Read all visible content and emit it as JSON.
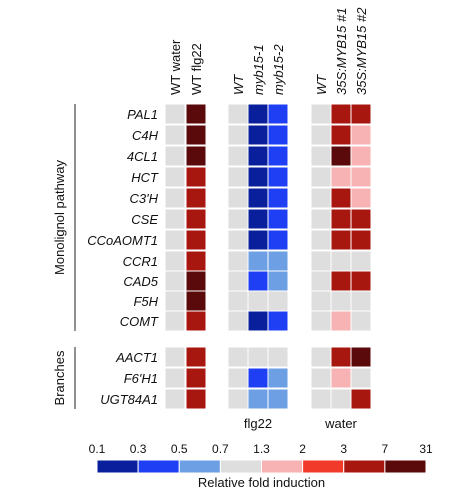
{
  "chart_data": {
    "type": "heatmap",
    "title": "",
    "row_groups": [
      {
        "name": "Monolignol pathway",
        "rows": [
          "PAL1",
          "C4H",
          "4CL1",
          "HCT",
          "C3'H",
          "CSE",
          "CCoAOMT1",
          "CCR1",
          "CAD5",
          "F5H",
          "COMT"
        ]
      },
      {
        "name": "Branches",
        "rows": [
          "AACT1",
          "F6'H1",
          "UGT84A1"
        ]
      }
    ],
    "panels": [
      {
        "label": "",
        "columns": [
          "WT water",
          "WT flg22"
        ],
        "italic": [
          false,
          false
        ]
      },
      {
        "label": "flg22",
        "columns": [
          "WT",
          "myb15-1",
          "myb15-2"
        ],
        "italic": [
          true,
          true,
          true
        ]
      },
      {
        "label": "water",
        "columns": [
          "WT",
          "35S:MYB15 #1",
          "35S:MYB15 #2"
        ],
        "italic": [
          true,
          true,
          true
        ]
      }
    ],
    "values": [
      [
        [
          1,
          15
        ],
        [
          1,
          0.2,
          0.3
        ],
        [
          1,
          5,
          4
        ]
      ],
      [
        [
          1,
          25
        ],
        [
          1,
          0.2,
          0.3
        ],
        [
          1,
          3,
          1.8
        ]
      ],
      [
        [
          1,
          28
        ],
        [
          1,
          0.2,
          0.3
        ],
        [
          1,
          12,
          1.8
        ]
      ],
      [
        [
          1,
          4
        ],
        [
          1,
          0.2,
          0.3
        ],
        [
          1,
          1.8,
          1.8
        ]
      ],
      [
        [
          1,
          5
        ],
        [
          1,
          0.2,
          0.3
        ],
        [
          1,
          5,
          1.8
        ]
      ],
      [
        [
          1,
          6
        ],
        [
          1,
          0.2,
          0.3
        ],
        [
          1,
          6,
          4
        ]
      ],
      [
        [
          1,
          4
        ],
        [
          1,
          0.2,
          0.3
        ],
        [
          1,
          5,
          4
        ]
      ],
      [
        [
          1,
          5
        ],
        [
          1,
          0.6,
          0.6
        ],
        [
          1,
          1,
          1
        ]
      ],
      [
        [
          1,
          25
        ],
        [
          1,
          0.4,
          0.6
        ],
        [
          1,
          4,
          4
        ]
      ],
      [
        [
          1,
          8
        ],
        [
          1,
          1,
          1
        ],
        [
          1,
          1,
          1
        ]
      ],
      [
        [
          1,
          6
        ],
        [
          1,
          0.2,
          0.3
        ],
        [
          1,
          1.8,
          1
        ]
      ],
      [
        [
          1,
          6
        ],
        [
          1,
          1,
          1
        ],
        [
          1,
          6,
          8
        ]
      ],
      [
        [
          1,
          5
        ],
        [
          1,
          0.4,
          0.6
        ],
        [
          1,
          1.8,
          1
        ]
      ],
      [
        [
          1,
          6
        ],
        [
          1,
          0.6,
          0.6
        ],
        [
          1,
          1,
          4
        ]
      ]
    ],
    "color_scale": {
      "title": "Relative fold induction",
      "tick_labels": [
        "0.1",
        "0.3",
        "0.5",
        "0.7",
        "1.3",
        "2",
        "3",
        "7",
        "31"
      ],
      "breaks": [
        0.1,
        0.3,
        0.5,
        0.7,
        1.3,
        2,
        3,
        7,
        31
      ],
      "colors": [
        "#0a1f9c",
        "#1f3ff5",
        "#6c9fe3",
        "#dedede",
        "#f7b3b3",
        "#f23a2a",
        "#a8170f",
        "#5a0a0a"
      ]
    }
  }
}
